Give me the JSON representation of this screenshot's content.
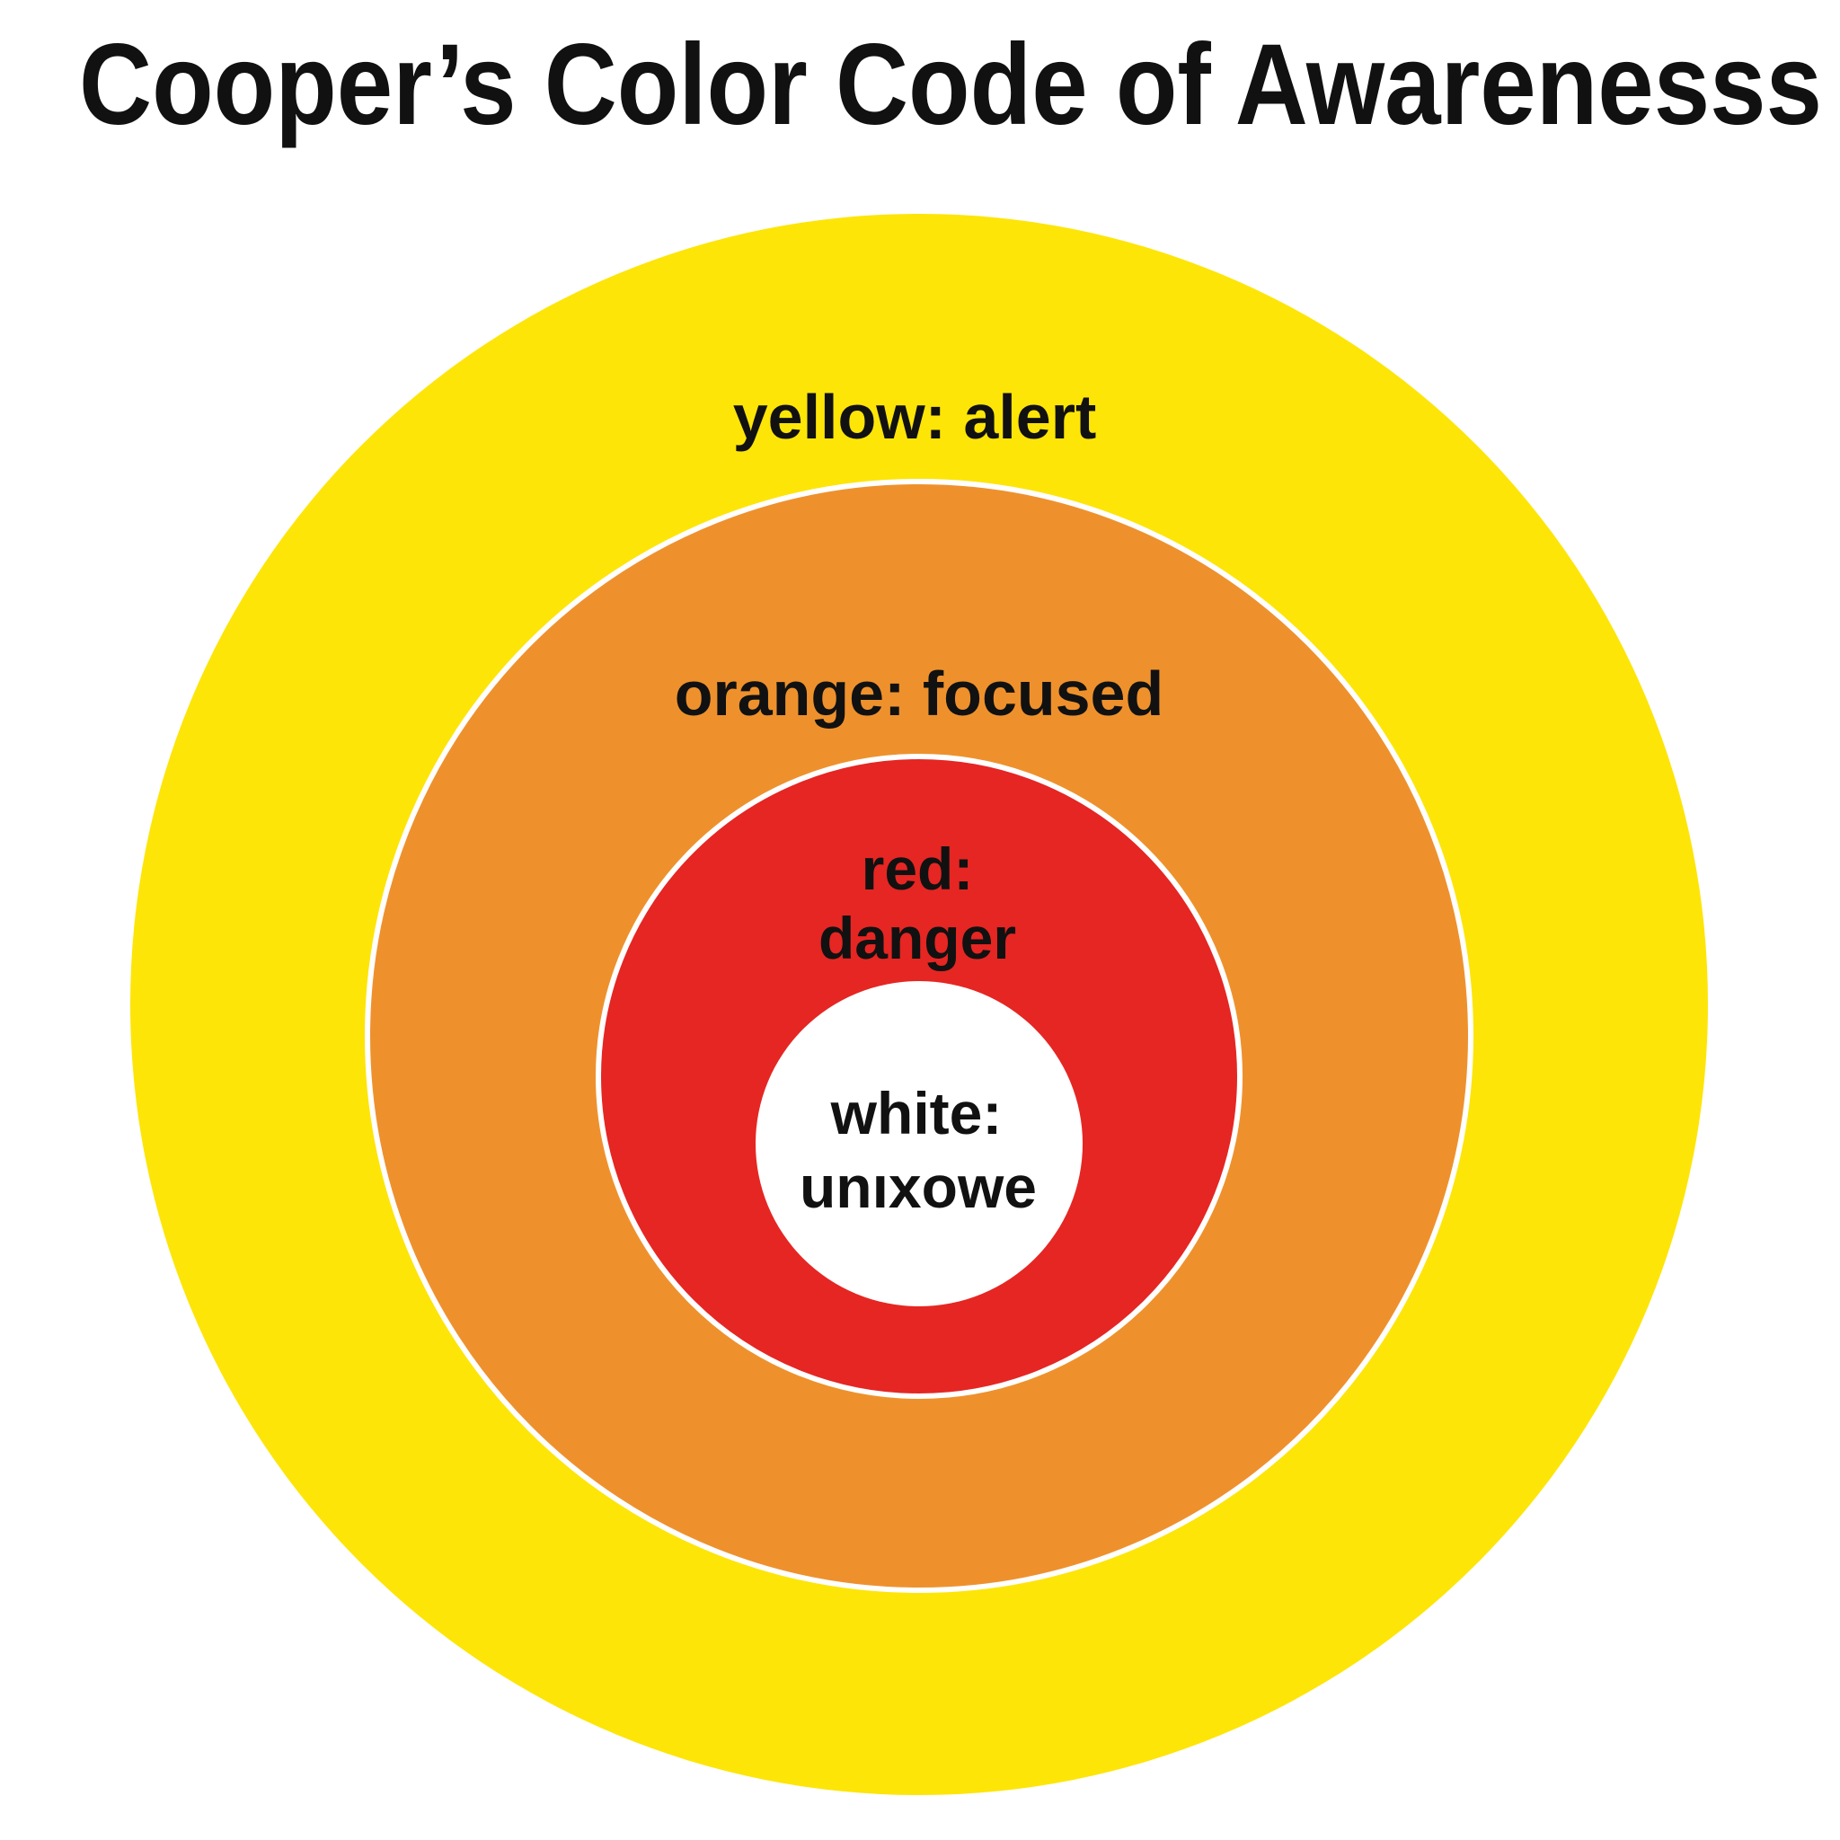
{
  "title": "Cooper’s Color Code of Awarenesss",
  "colors": {
    "yellow": "#fde508",
    "orange": "#ee912d",
    "red": "#e52623",
    "white": "#ffffff",
    "ring_border": "#ffffff",
    "text": "#111111"
  },
  "rings": {
    "yellow": {
      "label": "yellow: alert"
    },
    "orange": {
      "label": "orange: focused"
    },
    "red": {
      "label_line1": "red:",
      "label_line2": "danger"
    },
    "white": {
      "label_line1": "white:",
      "label_line2": "unıxowe"
    }
  }
}
